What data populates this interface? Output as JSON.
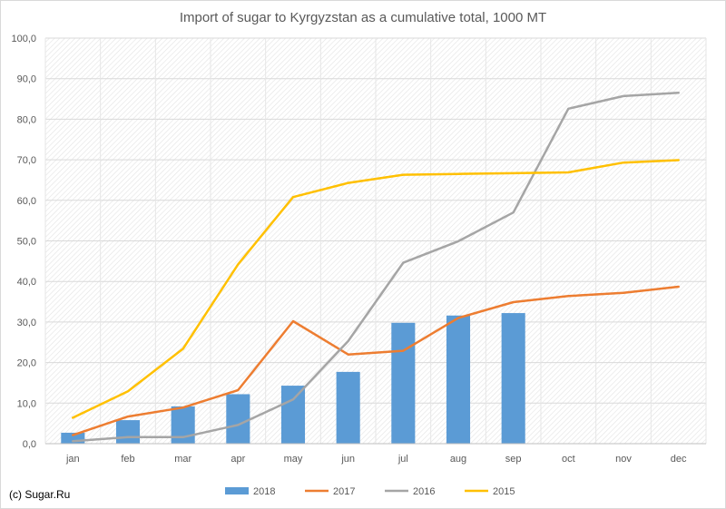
{
  "chart_data": {
    "type": "bar+line",
    "title": "Import of sugar to Kyrgyzstan as a cumulative total, 1000 MT",
    "xlabel": "",
    "ylabel": "",
    "categories": [
      "jan",
      "feb",
      "mar",
      "apr",
      "may",
      "jun",
      "jul",
      "aug",
      "sep",
      "oct",
      "nov",
      "dec"
    ],
    "ylim": [
      0,
      100
    ],
    "yticks": [
      "0,0",
      "10,0",
      "20,0",
      "30,0",
      "40,0",
      "50,0",
      "60,0",
      "70,0",
      "80,0",
      "90,0",
      "100,0"
    ],
    "grid": true,
    "legend_position": "bottom",
    "series": [
      {
        "name": "2018",
        "kind": "bar",
        "color": "#5b9bd5",
        "values": [
          2.7,
          5.8,
          9.2,
          12.2,
          14.3,
          17.7,
          29.8,
          31.6,
          32.2,
          null,
          null,
          null
        ]
      },
      {
        "name": "2017",
        "kind": "line",
        "color": "#ed7d31",
        "values": [
          2.1,
          6.7,
          8.9,
          13.2,
          30.2,
          22.0,
          22.9,
          31.0,
          34.9,
          36.4,
          37.2,
          38.7
        ]
      },
      {
        "name": "2016",
        "kind": "line",
        "color": "#a5a5a5",
        "values": [
          0.6,
          1.6,
          1.6,
          4.6,
          10.9,
          25.3,
          44.6,
          49.9,
          57.0,
          82.6,
          85.7,
          86.5
        ]
      },
      {
        "name": "2015",
        "kind": "line",
        "color": "#ffc000",
        "values": [
          6.4,
          12.9,
          23.4,
          44.2,
          60.8,
          64.3,
          66.3,
          66.5,
          66.7,
          66.9,
          69.3,
          69.9
        ]
      }
    ]
  },
  "credit": "(c) Sugar.Ru"
}
